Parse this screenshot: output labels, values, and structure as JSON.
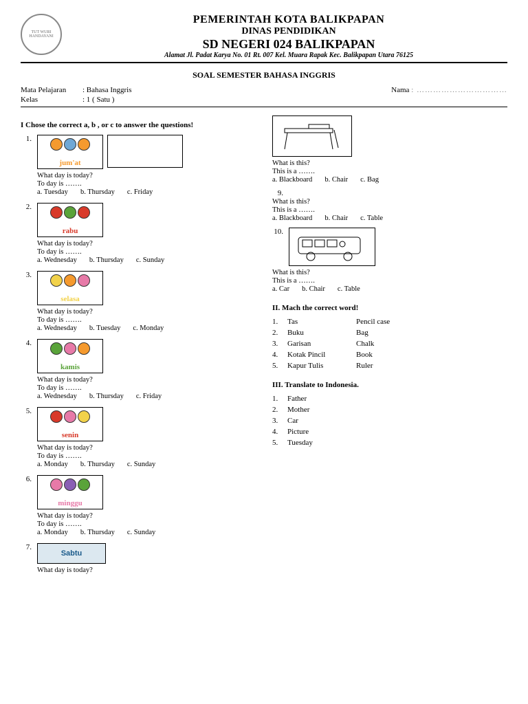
{
  "header": {
    "line1": "PEMERINTAH KOTA BALIKPAPAN",
    "line2": "DINAS PENDIDIKAN",
    "line3": "SD NEGERI 024 BALIKPAPAN",
    "address": "Alamat Jl. Padat Karya No. 01 Rt. 007 Kel. Muara Rapak Kec. Balikpapan Utara 76125",
    "logo_text": "TUT WURI HANDAYANI"
  },
  "subtitle": "SOAL SEMESTER BAHASA INGGRIS",
  "info": {
    "subject_label": "Mata Pelajaran",
    "subject_value": ": Bahasa Inggris",
    "class_label": "Kelas",
    "class_value": ": 1 ( Satu )",
    "name_label": "Nama",
    "name_value": ": ……………………………"
  },
  "section1": {
    "head": "I   Chose the correct  a, b , or c to answer the questions!",
    "q_day": "What day is today?",
    "q_today": "To day is …….",
    "q_what": "What is this?",
    "q_thisis": "This is a …….",
    "colors": {
      "orange": "#f59a2e",
      "red": "#d83a2a",
      "green": "#5aa33a",
      "yellow": "#f2d24a",
      "pink": "#e77aa8",
      "purple": "#8a5fb5",
      "blue": "#6fa8d6"
    },
    "items": [
      {
        "num": "1.",
        "day": "jum'at",
        "opts": [
          "a. Tuesday",
          "b. Thursday",
          "c. Friday"
        ],
        "c": [
          "orange",
          "blue",
          "orange"
        ]
      },
      {
        "num": "2.",
        "day": "rabu",
        "opts": [
          "a. Wednesday",
          "b. Thursday",
          "c. Sunday"
        ],
        "c": [
          "red",
          "green",
          "red"
        ]
      },
      {
        "num": "3.",
        "day": "selasa",
        "opts": [
          "a. Wednesday",
          "b. Tuesday",
          "c. Monday"
        ],
        "c": [
          "yellow",
          "orange",
          "pink"
        ]
      },
      {
        "num": "4.",
        "day": "kamis",
        "opts": [
          "a. Wednesday",
          "b. Thursday",
          "c. Friday"
        ],
        "c": [
          "green",
          "pink",
          "orange"
        ]
      },
      {
        "num": "5.",
        "day": "senin",
        "opts": [
          "a. Monday",
          "b. Thursday",
          "c. Sunday"
        ],
        "c": [
          "red",
          "pink",
          "yellow"
        ]
      },
      {
        "num": "6.",
        "day": "minggu",
        "opts": [
          "a. Monday",
          "b. Thursday",
          "c. Sunday"
        ],
        "c": [
          "pink",
          "purple",
          "green"
        ]
      },
      {
        "num": "7.",
        "day": "Sabtu",
        "opts": [],
        "c": [
          "blue",
          "blue",
          "blue"
        ],
        "plain": true
      }
    ],
    "right": [
      {
        "num": "",
        "img": "desk",
        "opts": [
          "a. Blackboard",
          "b. Chair",
          "c. Bag"
        ]
      },
      {
        "num": "9.",
        "text_only": true,
        "opts": [
          "a. Blackboard",
          "b. Chair",
          "c. Table"
        ]
      },
      {
        "num": "10.",
        "img": "bus",
        "opts": [
          "a. Car",
          "b. Chair",
          "c. Table"
        ]
      }
    ]
  },
  "section2": {
    "head": "II.  Mach the correct word!",
    "rows": [
      {
        "n": "1.",
        "l": "Tas",
        "r": "Pencil case"
      },
      {
        "n": "2.",
        "l": "Buku",
        "r": "Bag"
      },
      {
        "n": "3.",
        "l": "Garisan",
        "r": "Chalk"
      },
      {
        "n": "4.",
        "l": "Kotak Pincil",
        "r": "Book"
      },
      {
        "n": "5.",
        "l": "Kapur Tulis",
        "r": "Ruler"
      }
    ]
  },
  "section3": {
    "head": "III.  Translate to Indonesia.",
    "rows": [
      {
        "n": "1.",
        "t": "Father"
      },
      {
        "n": "2.",
        "t": "Mother"
      },
      {
        "n": "3.",
        "t": "Car"
      },
      {
        "n": "4.",
        "t": "Picture"
      },
      {
        "n": "5.",
        "t": "Tuesday"
      }
    ]
  }
}
